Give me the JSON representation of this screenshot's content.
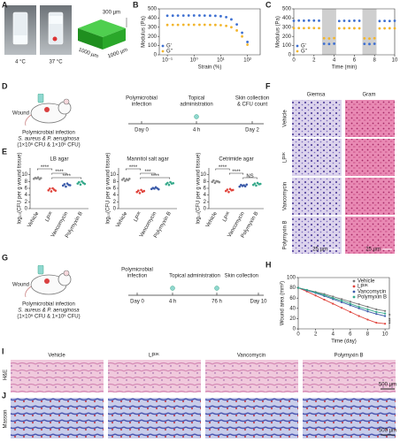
{
  "panel_letters": [
    "A",
    "B",
    "C",
    "D",
    "E",
    "F",
    "G",
    "H",
    "I",
    "J"
  ],
  "panel_A": {
    "temperatures": [
      "4 °C",
      "37 °C"
    ],
    "dimensions": [
      "300 µm",
      "1000 µm",
      "1000 µm"
    ]
  },
  "panel_D": {
    "wound": "Wound",
    "infection": "Polymicrobial infection",
    "bacteria": "S. aureus & P. aeruginosa",
    "dose": "(1×10⁶ CFU & 1×10⁶ CFU)",
    "steps": [
      [
        "Polymicrobial",
        "infection"
      ],
      [
        "Topical",
        "administration"
      ],
      [
        "Skin collection",
        "& CFU count"
      ]
    ],
    "times": [
      "Day 0",
      "4 h",
      "Day 2"
    ]
  },
  "panel_F": {
    "columns": [
      "Giemsa",
      "Gram"
    ],
    "rows": [
      "Vehicle",
      "LP²ᴷ",
      "Vancomycin",
      "Polymyxin B"
    ],
    "scale_bars": [
      "25 µm",
      "25 µm"
    ]
  },
  "panel_G": {
    "wound": "Wound",
    "infection": "Polymicrobial infection",
    "bacteria": "S. aureus & P. aeruginosa",
    "dose": "(1×10⁶ CFU & 1×10⁶ CFU)",
    "steps": [
      [
        "Polymicrobial",
        "infection"
      ],
      [
        "Topical administration"
      ],
      [
        "Skin collection"
      ]
    ],
    "times": [
      "Day 0",
      "4 h",
      "76 h",
      "Day 10"
    ]
  },
  "panel_I": {
    "stain": "H&E",
    "groups": [
      "Vehicle",
      "LP²ᴷ",
      "Vancomycin",
      "Polymyxin B"
    ],
    "scale_bar": "500 µm"
  },
  "panel_J": {
    "stain": "Masson",
    "scale_bar": "500 µm"
  },
  "chart_data": [
    {
      "type": "scatter",
      "xscale": "log",
      "x_label": "Strain (%)",
      "y_label": "Modulus (Pa)",
      "x": [
        0.1,
        0.16,
        0.25,
        0.4,
        0.63,
        1,
        1.6,
        2.5,
        4,
        6.3,
        10,
        16,
        25,
        40,
        63,
        100
      ],
      "series": [
        {
          "name": "G'",
          "color": "#3d6fd1",
          "values": [
            425,
            426,
            427,
            427,
            428,
            428,
            428,
            427,
            426,
            424,
            420,
            410,
            385,
            330,
            240,
            140
          ]
        },
        {
          "name": "G''",
          "color": "#f2b52c",
          "values": [
            325,
            326,
            326,
            327,
            327,
            327,
            327,
            327,
            326,
            325,
            322,
            315,
            300,
            265,
            200,
            110
          ]
        }
      ],
      "xlim": [
        0.05,
        300
      ],
      "xticks": [
        {
          "value": 0.1,
          "label": "10⁻¹"
        },
        {
          "value": 1,
          "label": "10⁰"
        },
        {
          "value": 10,
          "label": "10¹"
        },
        {
          "value": 100,
          "label": "10²"
        }
      ],
      "ylim": [
        0,
        500
      ],
      "yticks": [
        0,
        100,
        200,
        300,
        400,
        500
      ],
      "legend": "lower left"
    },
    {
      "type": "scatter",
      "x_label": "Time (min)",
      "y_label": "Modulus (Pa)",
      "x": [
        0,
        0.5,
        1,
        1.5,
        2,
        2.5,
        3,
        3.5,
        4,
        4.5,
        5,
        5.5,
        6,
        6.5,
        7,
        7.5,
        8,
        8.5,
        9,
        9.5,
        10
      ],
      "shaded_ranges": [
        [
          2.8,
          4.2
        ],
        [
          6.8,
          8.2
        ]
      ],
      "series": [
        {
          "name": "G'",
          "color": "#3d6fd1",
          "values": [
            370,
            372,
            371,
            373,
            372,
            371,
            120,
            118,
            121,
            368,
            370,
            369,
            371,
            370,
            119,
            117,
            120,
            367,
            369,
            368,
            370
          ]
        },
        {
          "name": "G''",
          "color": "#f2b52c",
          "values": [
            290,
            291,
            290,
            292,
            291,
            290,
            180,
            178,
            181,
            288,
            289,
            290,
            289,
            288,
            179,
            177,
            180,
            287,
            288,
            289,
            288
          ]
        }
      ],
      "xlim": [
        0,
        10
      ],
      "xticks": [
        0,
        2,
        4,
        6,
        8,
        10
      ],
      "ylim": [
        0,
        500
      ],
      "yticks": [
        0,
        100,
        200,
        300,
        400,
        500
      ],
      "legend": "lower left"
    },
    {
      "type": "dot_plot",
      "title": "LB agar",
      "y_label": "log₁₀(CFU per g wound tissue)",
      "categories": [
        "Vehicle",
        "LP²ᴷ",
        "Vancomycin",
        "Polymyxin B"
      ],
      "colors": [
        "#8c8c8c",
        "#e0443c",
        "#3b5ba9",
        "#35a98a"
      ],
      "values": [
        [
          8.8,
          9.1,
          8.9,
          9.2,
          8.7,
          9.0
        ],
        [
          5.4,
          5.9,
          5.1,
          6.0,
          5.6,
          5.3
        ],
        [
          6.8,
          7.2,
          6.5,
          7.4,
          7.0,
          6.9
        ],
        [
          7.4,
          7.8,
          7.1,
          8.0,
          7.6,
          7.3
        ]
      ],
      "comparisons": [
        {
          "pair": [
            0,
            1
          ],
          "label": "****"
        },
        {
          "pair": [
            1,
            2
          ],
          "label": "****"
        },
        {
          "pair": [
            1,
            3
          ],
          "label": "****"
        }
      ],
      "ylim": [
        0,
        12
      ],
      "yticks": [
        0,
        2,
        4,
        6,
        8,
        10
      ]
    },
    {
      "type": "dot_plot",
      "title": "Mannitol salt agar",
      "y_label": "log₁₀(CFU per g wound tissue)",
      "categories": [
        "Vehicle",
        "LP²ᴷ",
        "Vancomycin",
        "Polymyxin B"
      ],
      "colors": [
        "#8c8c8c",
        "#e0443c",
        "#3b5ba9",
        "#35a98a"
      ],
      "values": [
        [
          8.5,
          8.9,
          8.2,
          8.7,
          8.4,
          8.8
        ],
        [
          4.9,
          5.3,
          4.6,
          5.5,
          5.0,
          5.2
        ],
        [
          5.8,
          6.1,
          5.9,
          6.3,
          6.0,
          5.7
        ],
        [
          7.2,
          7.6,
          7.0,
          7.8,
          7.4,
          7.5
        ]
      ],
      "comparisons": [
        {
          "pair": [
            0,
            1
          ],
          "label": "****"
        },
        {
          "pair": [
            1,
            2
          ],
          "label": "***"
        },
        {
          "pair": [
            1,
            3
          ],
          "label": "****"
        }
      ],
      "ylim": [
        0,
        12
      ],
      "yticks": [
        0,
        2,
        4,
        6,
        8,
        10
      ]
    },
    {
      "type": "dot_plot",
      "title": "Cetrimide agar",
      "y_label": "log₁₀(CFU per g wound tissue)",
      "categories": [
        "Vehicle",
        "LP²ᴷ",
        "Vancomycin",
        "Polymyxin B"
      ],
      "colors": [
        "#8c8c8c",
        "#e0443c",
        "#3b5ba9",
        "#35a98a"
      ],
      "values": [
        [
          7.9,
          8.3,
          7.6,
          8.1,
          8.0,
          7.8
        ],
        [
          5.2,
          5.6,
          4.9,
          5.8,
          5.4,
          5.5
        ],
        [
          6.5,
          7.0,
          6.7,
          6.9,
          6.6,
          7.1
        ],
        [
          7.0,
          7.4,
          6.8,
          7.6,
          7.2,
          7.3
        ]
      ],
      "comparisons": [
        {
          "pair": [
            0,
            1
          ],
          "label": "****"
        },
        {
          "pair": [
            1,
            2
          ],
          "label": "****"
        },
        {
          "pair": [
            2,
            3
          ],
          "label": "NS"
        }
      ],
      "ylim": [
        0,
        12
      ],
      "yticks": [
        0,
        2,
        4,
        6,
        8,
        10
      ]
    },
    {
      "type": "line",
      "x_label": "Time (day)",
      "y_label": "Wound area (mm²)",
      "x": [
        0,
        1,
        2,
        3,
        4,
        5,
        6,
        7,
        8,
        9,
        10
      ],
      "series": [
        {
          "name": "Vehicle",
          "color": "#7a7a7a",
          "values": [
            80,
            76,
            72,
            68,
            63,
            58,
            53,
            48,
            43,
            38,
            35
          ]
        },
        {
          "name": "LP²ᴷ",
          "color": "#e0443c",
          "values": [
            80,
            73,
            65,
            57,
            49,
            41,
            33,
            25,
            18,
            12,
            10
          ]
        },
        {
          "name": "Vancomycin",
          "color": "#3b5ba9",
          "values": [
            80,
            75,
            70,
            64,
            58,
            52,
            46,
            40,
            34,
            29,
            25
          ]
        },
        {
          "name": "Polymyxin B",
          "color": "#35a98a",
          "values": [
            80,
            76,
            71,
            66,
            60,
            55,
            49,
            43,
            38,
            33,
            30
          ]
        }
      ],
      "annotations": [
        "*",
        "***"
      ],
      "xlim": [
        0,
        10.5
      ],
      "xticks": [
        0,
        2,
        4,
        6,
        8,
        10
      ],
      "ylim": [
        0,
        100
      ],
      "yticks": [
        0,
        20,
        40,
        60,
        80,
        100
      ],
      "legend": "upper right"
    }
  ]
}
